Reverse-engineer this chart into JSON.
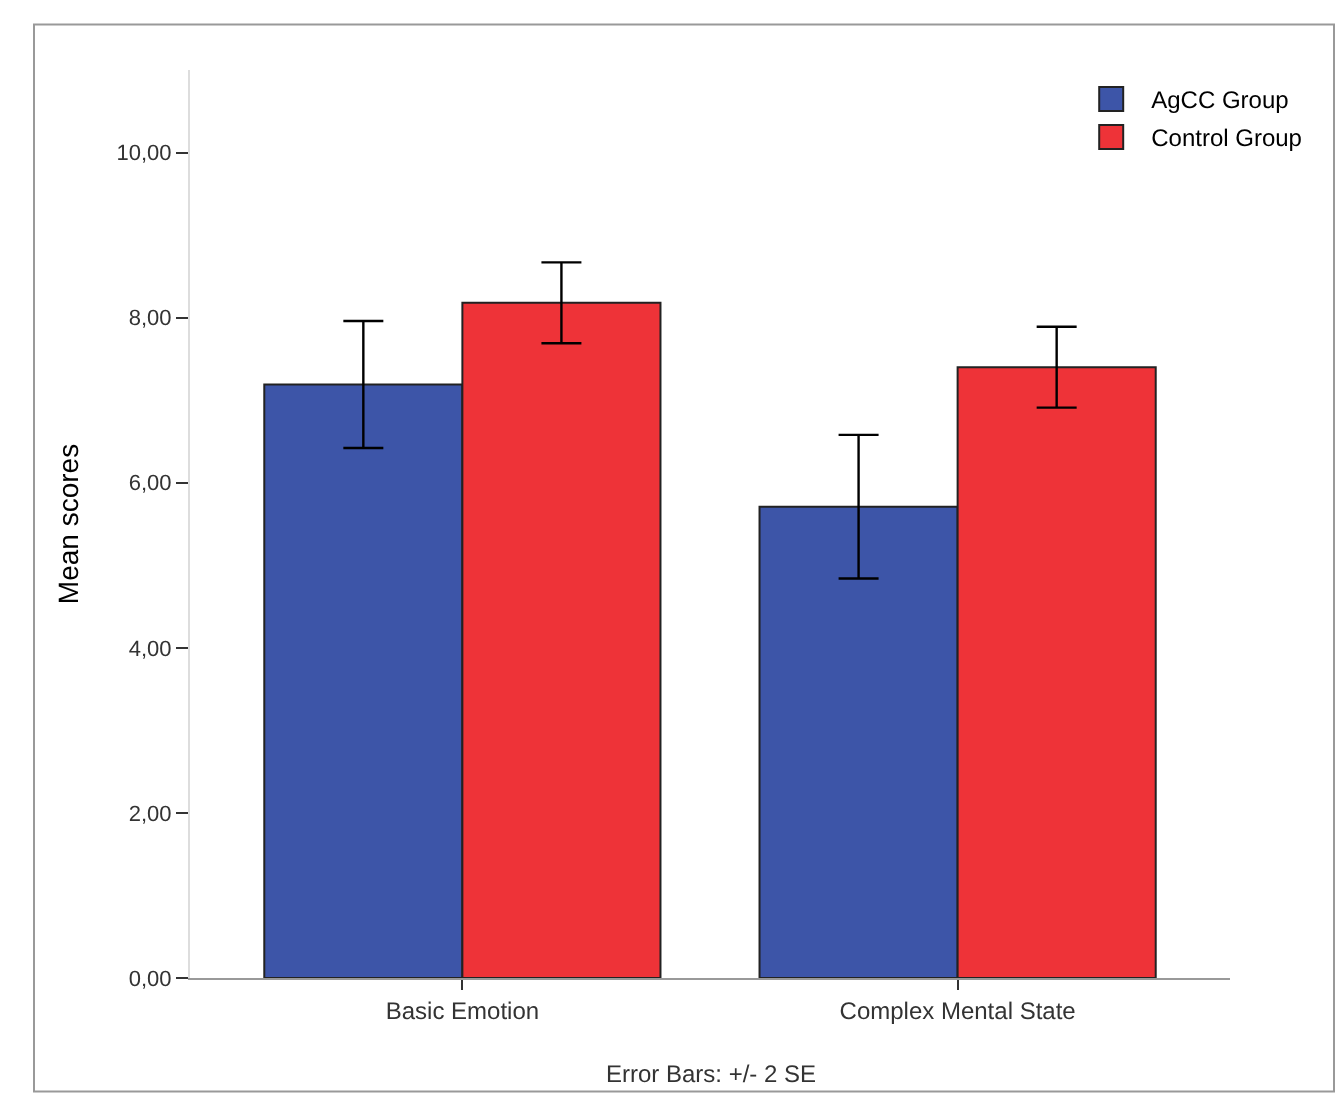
{
  "chart_data": {
    "type": "bar",
    "ylabel": "Mean scores",
    "categories": [
      "Basic Emotion",
      "Complex Mental State"
    ],
    "series": [
      {
        "name": "AgCC Group",
        "color": "#3d55a8",
        "values": [
          7.19,
          5.71
        ],
        "errors": [
          0.77,
          0.87
        ]
      },
      {
        "name": "Control Group",
        "color": "#ee3338",
        "values": [
          8.18,
          7.4
        ],
        "errors": [
          0.49,
          0.49
        ]
      }
    ],
    "ylim": [
      0,
      11
    ],
    "yticks": [
      {
        "value": 0,
        "label": "0,00"
      },
      {
        "value": 2,
        "label": "2,00"
      },
      {
        "value": 4,
        "label": "4,00"
      },
      {
        "value": 6,
        "label": "6,00"
      },
      {
        "value": 8,
        "label": "8,00"
      },
      {
        "value": 10,
        "label": "10,00"
      }
    ],
    "legend": "top right",
    "annotations": [
      "Error Bars: +/- 2 SE"
    ]
  }
}
